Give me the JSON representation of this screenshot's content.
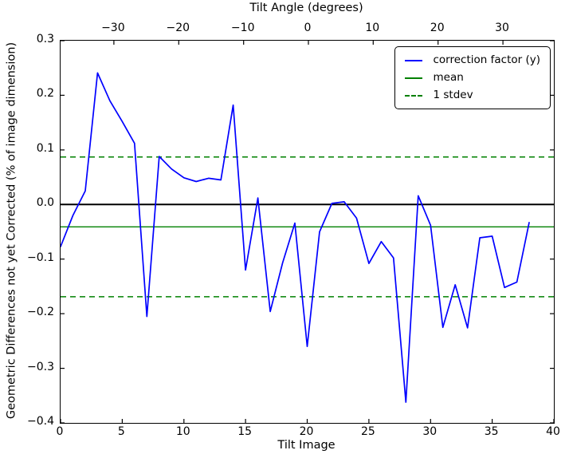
{
  "figure": {
    "top_axis_label": "Tilt Angle (degrees)",
    "bottom_axis_label": "Tilt Image",
    "y_axis_label": "Geometric Differences not yet Corrected (% of image dimension)"
  },
  "chart_data": {
    "type": "line",
    "title": "Tilt Angle (degrees)",
    "xlabel": "Tilt Image",
    "ylabel": "Geometric Differences not yet Corrected (% of image dimension)",
    "xlim": [
      0,
      40
    ],
    "ylim": [
      -0.4,
      0.3
    ],
    "grid": false,
    "x_ticks": [
      0,
      5,
      10,
      15,
      20,
      25,
      30,
      35,
      40
    ],
    "x_tick_labels": [
      "0",
      "5",
      "10",
      "15",
      "20",
      "25",
      "30",
      "35",
      "40"
    ],
    "y_ticks": [
      0.3,
      0.2,
      0.1,
      0.0,
      -0.1,
      -0.2,
      -0.3,
      -0.4
    ],
    "y_tick_labels": [
      "0.3",
      "0.2",
      "0.1",
      "0.0",
      "−0.1",
      "−0.2",
      "−0.3",
      "−0.4"
    ],
    "top_axis": {
      "label": "Tilt Angle (degrees)",
      "ticks": [
        {
          "label": "−30",
          "pos": 0.108
        },
        {
          "label": "−20",
          "pos": 0.2396
        },
        {
          "label": "−10",
          "pos": 0.3711
        },
        {
          "label": "0",
          "pos": 0.5024
        },
        {
          "label": "10",
          "pos": 0.6338
        },
        {
          "label": "20",
          "pos": 0.7653
        },
        {
          "label": "30",
          "pos": 0.8967
        }
      ]
    },
    "series": [
      {
        "name": "correction factor (y)",
        "color": "#0000ff",
        "line_style": "solid",
        "x": [
          0,
          1,
          2,
          3,
          4,
          5,
          6,
          7,
          8,
          9,
          10,
          11,
          12,
          13,
          14,
          15,
          16,
          17,
          18,
          19,
          20,
          21,
          22,
          23,
          24,
          25,
          26,
          27,
          28,
          29,
          30,
          31,
          32,
          33,
          34,
          35,
          36,
          37,
          38
        ],
        "y": [
          -0.077,
          -0.02,
          0.025,
          0.241,
          0.19,
          0.152,
          0.112,
          -0.205,
          0.088,
          0.065,
          0.049,
          0.042,
          0.048,
          0.045,
          0.182,
          -0.12,
          0.012,
          -0.196,
          -0.107,
          -0.034,
          -0.26,
          -0.05,
          0.002,
          0.005,
          -0.025,
          -0.108,
          -0.068,
          -0.098,
          -0.362,
          0.016,
          -0.038,
          -0.225,
          -0.147,
          -0.226,
          -0.061,
          -0.058,
          -0.152,
          -0.142,
          -0.033
        ]
      }
    ],
    "ref_lines": [
      {
        "name": "zero line",
        "value": 0.0,
        "color": "#000000",
        "line_style": "solid",
        "width": 2.0
      },
      {
        "name": "mean",
        "value": -0.041,
        "color": "#008000",
        "line_style": "solid",
        "width": 1.3
      },
      {
        "name": "1 stdev upper",
        "value": 0.087,
        "color": "#008000",
        "line_style": "dashed",
        "width": 1.5
      },
      {
        "name": "1 stdev lower",
        "value": -0.169,
        "color": "#008000",
        "line_style": "dashed",
        "width": 1.5
      }
    ],
    "legend": {
      "position": "upper right",
      "entries": [
        {
          "label": "correction factor (y)",
          "color": "#0000ff",
          "line_style": "solid"
        },
        {
          "label": "mean",
          "color": "#008000",
          "line_style": "solid"
        },
        {
          "label": "1 stdev",
          "color": "#008000",
          "line_style": "dashed"
        }
      ]
    }
  }
}
